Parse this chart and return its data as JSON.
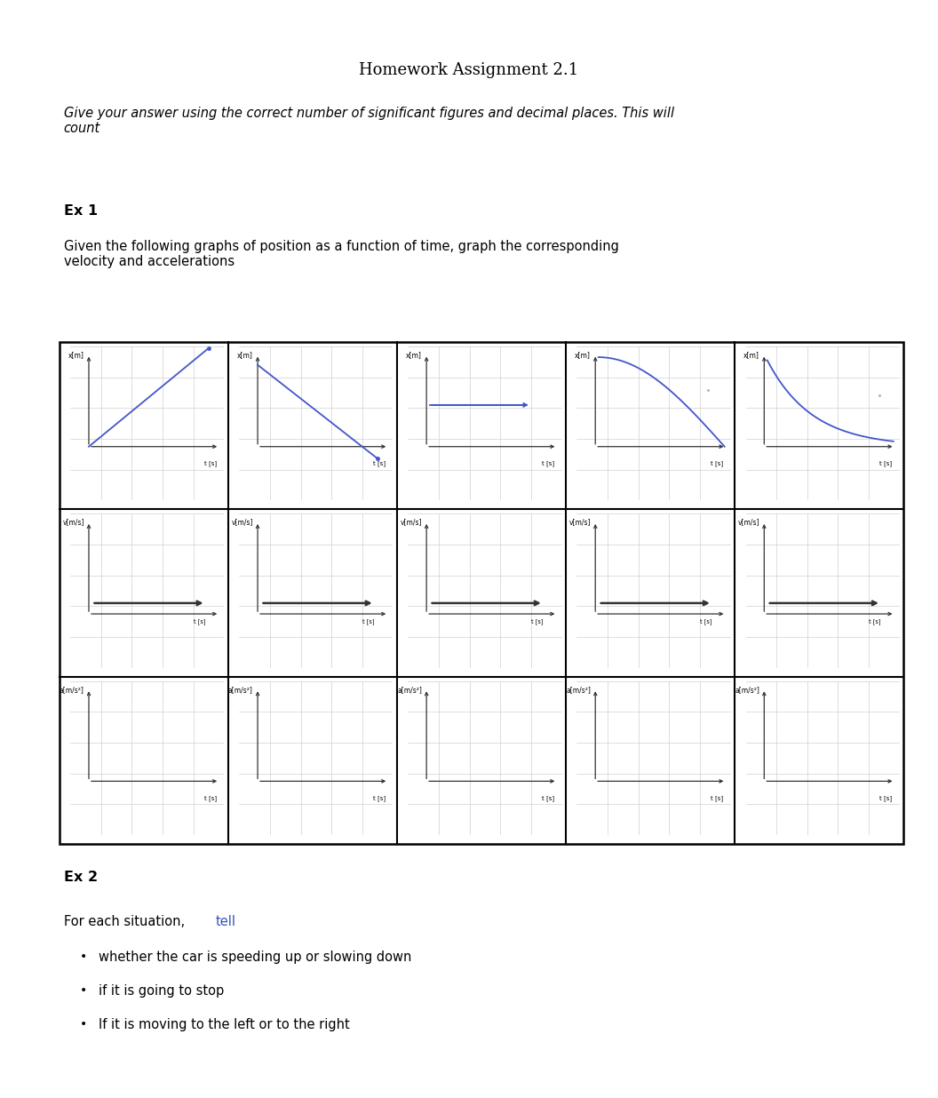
{
  "title": "Homework Assignment 2.1",
  "subtitle": "Give your answer using the correct number of significant figures and decimal places. This will\ncount",
  "ex1_label": "Ex 1",
  "ex1_desc": "Given the following graphs of position as a function of time, graph the corresponding\nvelocity and accelerations",
  "ex2_label": "Ex 2",
  "ex2_intro": "For each situation, tell",
  "ex2_bullets": [
    "whether the car is speeding up or slowing down",
    "if it is going to stop",
    "If it is moving to the left or to the right"
  ],
  "blue": "#4455cc",
  "dark": "#333333",
  "grid_c": "#d0d0d0",
  "black": "#000000",
  "blue_text": "#3355bb",
  "grid_rows": 3,
  "grid_cols": 5,
  "row_ylabels": [
    "x[m]",
    "v[m/s]",
    "a[m/s²]"
  ],
  "t_label": "t [s]"
}
